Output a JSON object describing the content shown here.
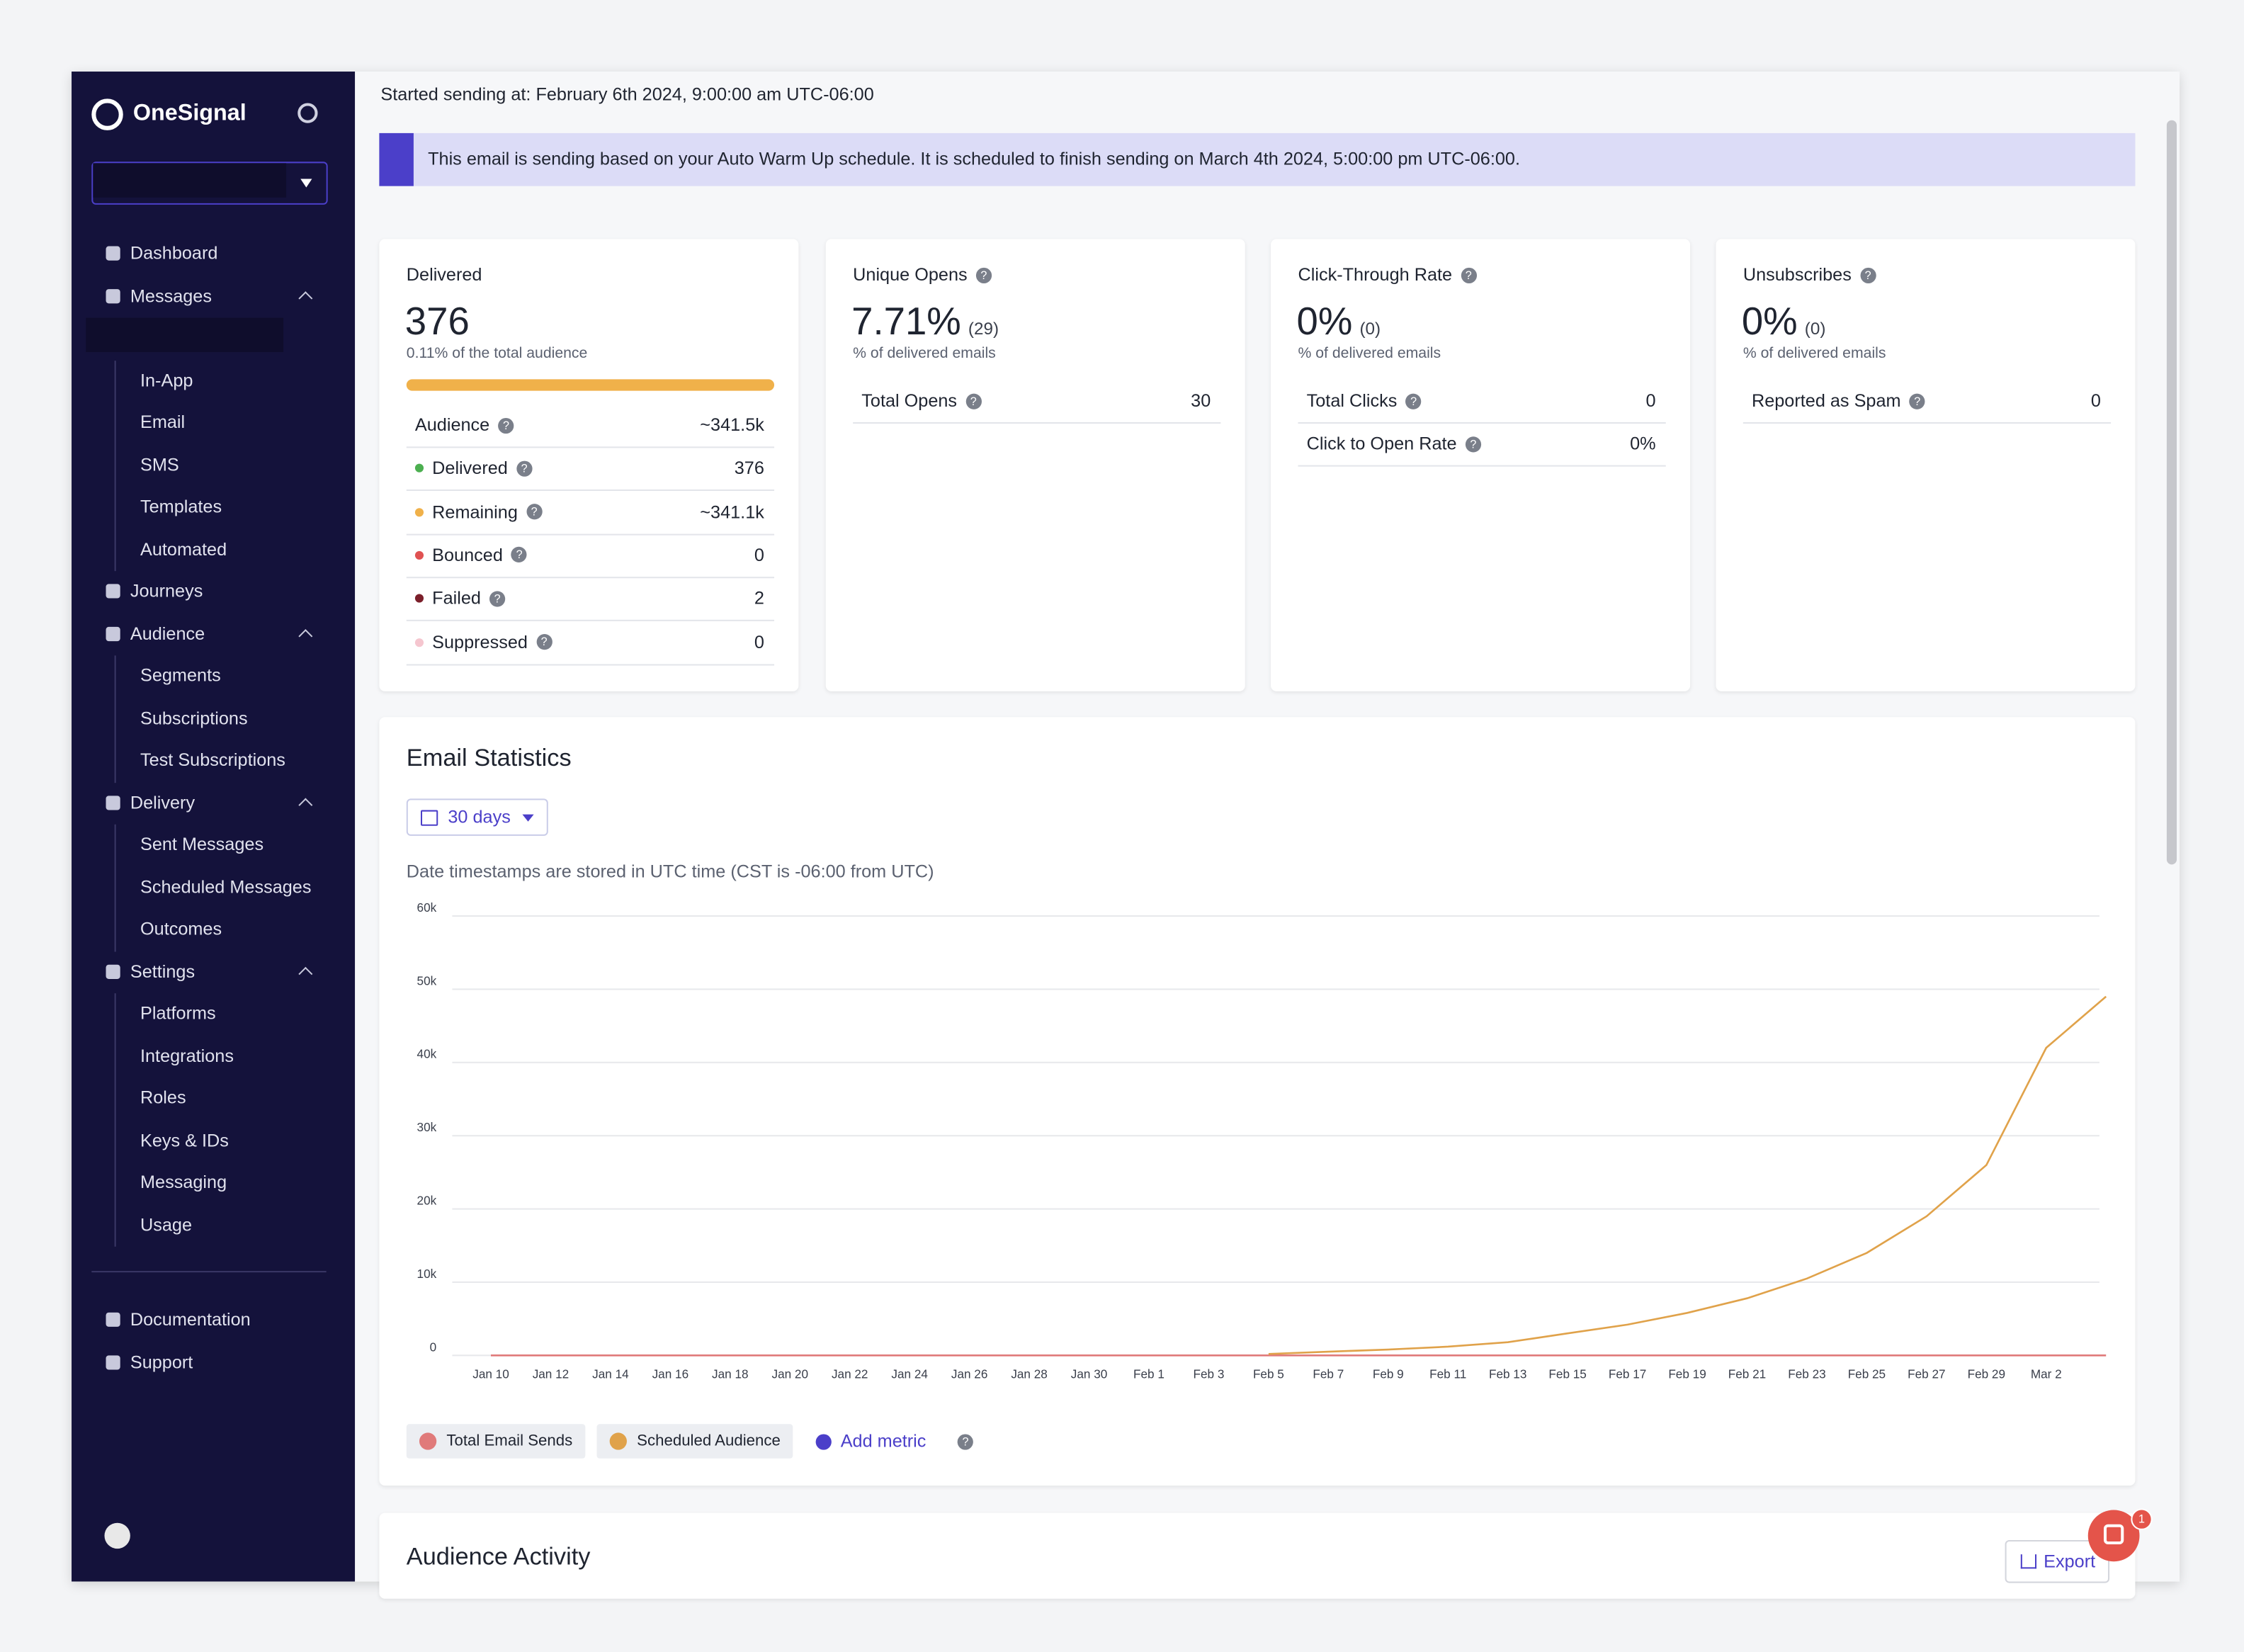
{
  "sidebar": {
    "brand": "OneSignal",
    "nav": [
      {
        "label": "Dashboard"
      },
      {
        "label": "Messages",
        "children": [
          "In-App",
          "Email",
          "SMS",
          "Templates",
          "Automated"
        ]
      },
      {
        "label": "Journeys"
      },
      {
        "label": "Audience",
        "children": [
          "Segments",
          "Subscriptions",
          "Test Subscriptions"
        ]
      },
      {
        "label": "Delivery",
        "children": [
          "Sent Messages",
          "Scheduled Messages",
          "Outcomes"
        ]
      },
      {
        "label": "Settings",
        "children": [
          "Platforms",
          "Integrations",
          "Roles",
          "Keys & IDs",
          "Messaging",
          "Usage"
        ]
      }
    ],
    "footer": [
      "Documentation",
      "Support"
    ]
  },
  "header": {
    "started": "Started sending at: February 6th 2024, 9:00:00 am UTC-06:00"
  },
  "banner": "This email is sending based on your Auto Warm Up schedule. It is scheduled to finish sending on March 4th 2024, 5:00:00 pm UTC-06:00.",
  "cards": [
    {
      "title": "Delivered",
      "value": "376",
      "caption": "0.11% of the total audience",
      "rows": [
        {
          "label": "Audience",
          "value": "~341.5k"
        },
        {
          "label": "Delivered",
          "value": "376",
          "color": "#4caf50"
        },
        {
          "label": "Remaining",
          "value": "~341.1k",
          "color": "#f0b14a"
        },
        {
          "label": "Bounced",
          "value": "0",
          "color": "#e05252"
        },
        {
          "label": "Failed",
          "value": "2",
          "color": "#7b1f2a"
        },
        {
          "label": "Suppressed",
          "value": "0",
          "color": "#f5c6cf"
        }
      ]
    },
    {
      "title": "Unique Opens",
      "value": "7.71%",
      "detail": "(29)",
      "caption": "% of delivered emails",
      "rows": [
        {
          "label": "Total Opens",
          "value": "30"
        }
      ]
    },
    {
      "title": "Click-Through Rate",
      "value": "0%",
      "detail": "(0)",
      "caption": "% of delivered emails",
      "rows": [
        {
          "label": "Total Clicks",
          "value": "0"
        },
        {
          "label": "Click to Open Rate",
          "value": "0%"
        }
      ]
    },
    {
      "title": "Unsubscribes",
      "value": "0%",
      "detail": "(0)",
      "caption": "% of delivered emails",
      "rows": [
        {
          "label": "Reported as Spam",
          "value": "0"
        }
      ]
    }
  ],
  "email_statistics": {
    "title": "Email Statistics",
    "range": "30 days",
    "note": "Date timestamps are stored in UTC time (CST is -06:00 from UTC)",
    "add_metric": "Add metric",
    "chart": {
      "type": "line",
      "categories": [
        "Jan 10",
        "Jan 12",
        "Jan 14",
        "Jan 16",
        "Jan 18",
        "Jan 20",
        "Jan 22",
        "Jan 24",
        "Jan 26",
        "Jan 28",
        "Jan 30",
        "Feb 1",
        "Feb 3",
        "Feb 5",
        "Feb 7",
        "Feb 9",
        "Feb 11",
        "Feb 13",
        "Feb 15",
        "Feb 17",
        "Feb 19",
        "Feb 21",
        "Feb 23",
        "Feb 25",
        "Feb 27",
        "Feb 29",
        "Mar 2",
        null
      ],
      "series": [
        {
          "name": "Total Email Sends",
          "color": "#e07a7a",
          "values": [
            0,
            0,
            0,
            0,
            0,
            0,
            0,
            0,
            0,
            0,
            0,
            0,
            0,
            0,
            0,
            0,
            0,
            0,
            0,
            0,
            0,
            0,
            0,
            0,
            0,
            0,
            0,
            0
          ]
        },
        {
          "name": "Scheduled Audience",
          "color": "#e0a24a",
          "values": [
            null,
            null,
            null,
            null,
            null,
            null,
            null,
            null,
            null,
            null,
            null,
            null,
            null,
            200,
            500,
            800,
            1200,
            1800,
            3000,
            4200,
            5800,
            7800,
            10500,
            14000,
            19000,
            26000,
            42000,
            49000
          ]
        }
      ],
      "ylim": [
        0,
        60000
      ],
      "yticks": [
        0,
        {
          "value": 10000,
          "label": "10k"
        },
        {
          "value": 20000,
          "label": "20k"
        },
        {
          "value": 30000,
          "label": "30k"
        },
        {
          "value": 40000,
          "label": "40k"
        },
        {
          "value": 50000,
          "label": "50k"
        },
        {
          "value": 60000,
          "label": "60k"
        }
      ],
      "grid": true
    }
  },
  "audience_activity": {
    "title": "Audience Activity",
    "export": "Export"
  },
  "notifications": "1"
}
